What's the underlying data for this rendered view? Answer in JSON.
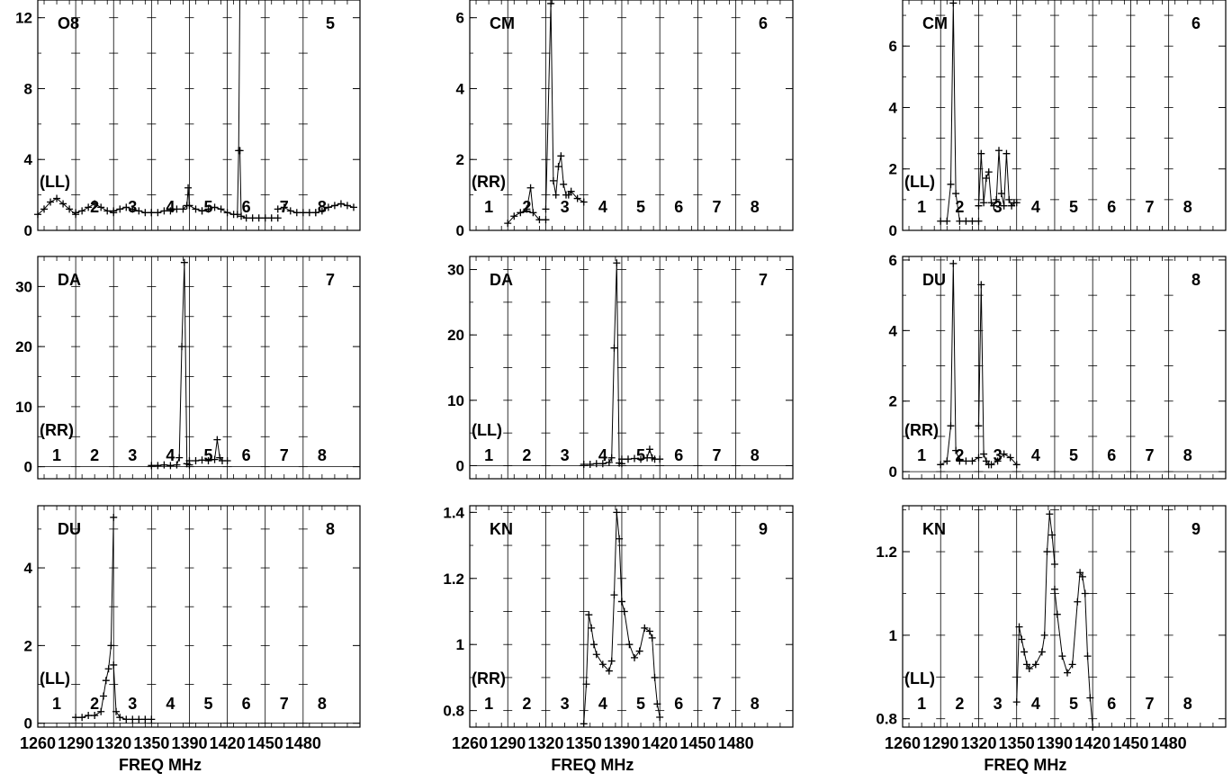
{
  "figure": {
    "x_tick_labels": [
      "1260",
      "1290",
      "1320",
      "1350",
      "1390",
      "1420",
      "1450",
      "1480"
    ],
    "xlabel": "FREQ MHz",
    "band_labels": [
      "1",
      "2",
      "3",
      "4",
      "5",
      "6",
      "7",
      "8"
    ],
    "line_color": "#000000"
  },
  "chart_data": [
    {
      "type": "line",
      "col": 0,
      "row": 0,
      "station": "O8",
      "panel_number": "5",
      "pol": "(LL)",
      "ylim": [
        0,
        13
      ],
      "yticks": [
        0,
        4,
        8,
        12
      ],
      "grid": true,
      "bands_visible": [
        false,
        true,
        true,
        true,
        true,
        true,
        true,
        true
      ],
      "series": [
        {
          "segments": [
            {
              "x": [
                1260,
                1265,
                1270,
                1275,
                1280,
                1285,
                1290
              ],
              "y": [
                0.9,
                1.2,
                1.6,
                1.8,
                1.5,
                1.2,
                0.9
              ]
            },
            {
              "x": [
                1290,
                1295,
                1300,
                1305,
                1310,
                1315,
                1320
              ],
              "y": [
                1.0,
                1.1,
                1.3,
                1.5,
                1.3,
                1.1,
                1.0
              ]
            },
            {
              "x": [
                1320,
                1325,
                1330,
                1335,
                1340,
                1345,
                1350
              ],
              "y": [
                1.1,
                1.2,
                1.3,
                1.2,
                1.1,
                1.0,
                1.0
              ]
            },
            {
              "x": [
                1350,
                1355,
                1360,
                1365,
                1370,
                1375,
                1378,
                1379,
                1380,
                1385,
                1390
              ],
              "y": [
                1.0,
                1.0,
                1.1,
                1.1,
                1.2,
                1.2,
                1.4,
                2.4,
                1.4,
                1.2,
                1.1
              ]
            },
            {
              "x": [
                1390,
                1395,
                1400,
                1405,
                1410,
                1415,
                1418,
                1419,
                1420
              ],
              "y": [
                1.1,
                1.2,
                1.3,
                1.2,
                1.0,
                0.9,
                0.9,
                4.5,
                13.5
              ]
            },
            {
              "x": [
                1420,
                1421,
                1425,
                1430,
                1435,
                1440,
                1445,
                1450
              ],
              "y": [
                4.5,
                0.8,
                0.7,
                0.7,
                0.7,
                0.7,
                0.7,
                0.7
              ]
            },
            {
              "x": [
                1450,
                1455,
                1460,
                1465,
                1470,
                1475,
                1480
              ],
              "y": [
                1.2,
                1.3,
                1.1,
                1.0,
                1.0,
                1.0,
                1.0
              ]
            },
            {
              "x": [
                1480,
                1485,
                1490,
                1495,
                1500,
                1505,
                1510
              ],
              "y": [
                1.0,
                1.1,
                1.3,
                1.4,
                1.5,
                1.4,
                1.3
              ]
            }
          ]
        }
      ]
    },
    {
      "type": "line",
      "col": 1,
      "row": 0,
      "station": "CM",
      "panel_number": "6",
      "pol": "(RR)",
      "ylim": [
        0,
        6.5
      ],
      "yticks": [
        0,
        2,
        4,
        6
      ],
      "grid": true,
      "bands_visible": [
        true,
        true,
        true,
        true,
        true,
        true,
        true,
        true
      ],
      "series": [
        {
          "segments": [
            {
              "x": [
                1290,
                1295,
                1300,
                1305,
                1308,
                1310,
                1315,
                1320
              ],
              "y": [
                0.2,
                0.4,
                0.5,
                0.6,
                1.2,
                0.5,
                0.3,
                0.3
              ]
            },
            {
              "x": [
                1320,
                1324,
                1326,
                1328,
                1330,
                1332,
                1334,
                1336,
                1338,
                1340,
                1345,
                1350
              ],
              "y": [
                0.6,
                6.4,
                1.4,
                1.0,
                1.8,
                2.1,
                1.3,
                1.0,
                1.0,
                1.1,
                0.9,
                0.8
              ]
            }
          ]
        }
      ]
    },
    {
      "type": "line",
      "col": 2,
      "row": 0,
      "station": "CM",
      "panel_number": "6",
      "pol": "(LL)",
      "ylim": [
        0,
        7.5
      ],
      "yticks": [
        0,
        2,
        4,
        6
      ],
      "grid": true,
      "bands_visible": [
        true,
        true,
        true,
        true,
        true,
        true,
        true,
        true
      ],
      "series": [
        {
          "segments": [
            {
              "x": [
                1290,
                1295,
                1298,
                1300,
                1302,
                1305,
                1310,
                1315,
                1320
              ],
              "y": [
                0.3,
                0.3,
                1.5,
                7.4,
                1.2,
                0.3,
                0.3,
                0.3,
                0.3
              ]
            },
            {
              "x": [
                1320,
                1322,
                1324,
                1326,
                1328,
                1330,
                1332,
                1334,
                1336,
                1338,
                1340,
                1342,
                1344,
                1346,
                1348,
                1350
              ],
              "y": [
                0.8,
                2.5,
                0.9,
                1.7,
                1.9,
                0.9,
                0.8,
                1.0,
                2.6,
                1.2,
                0.8,
                2.5,
                1.0,
                0.8,
                0.9,
                0.9
              ]
            }
          ]
        }
      ]
    },
    {
      "type": "line",
      "col": 0,
      "row": 1,
      "station": "DA",
      "panel_number": "7",
      "pol": "(RR)",
      "ylim": [
        -2,
        35
      ],
      "yticks": [
        0,
        10,
        20,
        30
      ],
      "grid": true,
      "bands_visible": [
        true,
        true,
        true,
        true,
        true,
        true,
        true,
        true
      ],
      "series": [
        {
          "segments": [
            {
              "x": [
                1350,
                1355,
                1360,
                1365,
                1370,
                1372,
                1374,
                1376,
                1378,
                1380
              ],
              "y": [
                0.2,
                0.2,
                0.3,
                0.2,
                0.3,
                1.5,
                20,
                34,
                0.5,
                0.3
              ]
            },
            {
              "x": [
                1380,
                1385,
                1390,
                1395,
                1400,
                1402,
                1404,
                1406,
                1410
              ],
              "y": [
                1.0,
                1.0,
                1.1,
                1.0,
                1.2,
                4.5,
                1.5,
                1.0,
                1.0
              ]
            }
          ]
        }
      ]
    },
    {
      "type": "line",
      "col": 1,
      "row": 1,
      "station": "DA",
      "panel_number": "7",
      "pol": "(LL)",
      "ylim": [
        -2,
        32
      ],
      "yticks": [
        0,
        10,
        20,
        30
      ],
      "grid": true,
      "bands_visible": [
        true,
        true,
        true,
        true,
        true,
        true,
        true,
        true
      ],
      "series": [
        {
          "segments": [
            {
              "x": [
                1350,
                1355,
                1360,
                1365,
                1370,
                1372,
                1374,
                1376,
                1378,
                1380
              ],
              "y": [
                0.2,
                0.2,
                0.3,
                0.3,
                0.5,
                1.2,
                18,
                31,
                0.4,
                0.3
              ]
            },
            {
              "x": [
                1380,
                1385,
                1390,
                1395,
                1400,
                1402,
                1404,
                1406,
                1410
              ],
              "y": [
                1.0,
                1.0,
                1.1,
                1.0,
                1.2,
                2.5,
                1.2,
                1.0,
                1.0
              ]
            }
          ]
        }
      ]
    },
    {
      "type": "line",
      "col": 2,
      "row": 1,
      "station": "DU",
      "panel_number": "8",
      "pol": "(RR)",
      "ylim": [
        -0.2,
        6.1
      ],
      "yticks": [
        0,
        2,
        4,
        6
      ],
      "grid": true,
      "bands_visible": [
        true,
        true,
        true,
        true,
        true,
        true,
        true,
        true
      ],
      "series": [
        {
          "segments": [
            {
              "x": [
                1290,
                1295,
                1298,
                1300,
                1302,
                1305,
                1310,
                1315,
                1320
              ],
              "y": [
                0.2,
                0.3,
                1.3,
                5.9,
                0.6,
                0.3,
                0.3,
                0.3,
                0.4
              ]
            },
            {
              "x": [
                1320,
                1322,
                1324,
                1326,
                1328,
                1330,
                1335,
                1340,
                1345,
                1350
              ],
              "y": [
                1.3,
                5.3,
                0.5,
                0.3,
                0.2,
                0.2,
                0.3,
                0.5,
                0.4,
                0.2
              ]
            }
          ]
        }
      ]
    },
    {
      "type": "line",
      "col": 0,
      "row": 2,
      "station": "DU",
      "panel_number": "8",
      "pol": "(LL)",
      "ylim": [
        -0.1,
        5.6
      ],
      "yticks": [
        0,
        2,
        4
      ],
      "grid": true,
      "bands_visible": [
        true,
        true,
        true,
        true,
        true,
        true,
        true,
        true
      ],
      "series": [
        {
          "segments": [
            {
              "x": [
                1290,
                1295,
                1300,
                1305,
                1310,
                1312,
                1314,
                1316,
                1318,
                1320
              ],
              "y": [
                0.15,
                0.15,
                0.2,
                0.2,
                0.3,
                0.7,
                1.1,
                1.4,
                2.0,
                5.3
              ]
            },
            {
              "x": [
                1320,
                1322,
                1325,
                1330,
                1335,
                1340,
                1345,
                1350
              ],
              "y": [
                1.5,
                0.3,
                0.15,
                0.1,
                0.1,
                0.1,
                0.1,
                0.1
              ]
            }
          ]
        }
      ]
    },
    {
      "type": "line",
      "col": 1,
      "row": 2,
      "station": "KN",
      "panel_number": "9",
      "pol": "(RR)",
      "ylim": [
        0.75,
        1.42
      ],
      "yticks": [
        0.8,
        1.0,
        1.2,
        1.4
      ],
      "grid": true,
      "bands_visible": [
        true,
        true,
        true,
        true,
        true,
        true,
        true,
        true
      ],
      "series": [
        {
          "segments": [
            {
              "x": [
                1350,
                1352,
                1354,
                1356,
                1358,
                1360,
                1365,
                1370,
                1372,
                1374,
                1376,
                1378,
                1380
              ],
              "y": [
                0.76,
                0.88,
                1.09,
                1.05,
                1.0,
                0.97,
                0.94,
                0.92,
                0.95,
                1.15,
                1.4,
                1.32,
                1.13
              ]
            },
            {
              "x": [
                1380,
                1382,
                1386,
                1390,
                1394,
                1398,
                1402,
                1404,
                1406,
                1408,
                1410
              ],
              "y": [
                1.13,
                1.1,
                1.0,
                0.96,
                0.98,
                1.05,
                1.04,
                1.02,
                0.9,
                0.82,
                0.78
              ]
            }
          ]
        }
      ]
    },
    {
      "type": "line",
      "col": 2,
      "row": 2,
      "station": "KN",
      "panel_number": "9",
      "pol": "(LL)",
      "ylim": [
        0.78,
        1.31
      ],
      "yticks": [
        0.8,
        1.0,
        1.2
      ],
      "grid": true,
      "bands_visible": [
        true,
        true,
        true,
        true,
        true,
        true,
        true,
        true
      ],
      "series": [
        {
          "segments": [
            {
              "x": [
                1350,
                1352,
                1354,
                1356,
                1358,
                1360,
                1365,
                1370,
                1372,
                1374,
                1376,
                1378,
                1380
              ],
              "y": [
                0.84,
                1.02,
                0.99,
                0.96,
                0.93,
                0.92,
                0.93,
                0.96,
                1.0,
                1.2,
                1.29,
                1.24,
                1.17
              ]
            },
            {
              "x": [
                1380,
                1382,
                1386,
                1390,
                1394,
                1398,
                1400,
                1402,
                1404,
                1406,
                1408,
                1410
              ],
              "y": [
                1.11,
                1.05,
                0.95,
                0.91,
                0.93,
                1.08,
                1.15,
                1.14,
                1.1,
                0.95,
                0.85,
                0.78
              ]
            }
          ]
        }
      ]
    }
  ]
}
